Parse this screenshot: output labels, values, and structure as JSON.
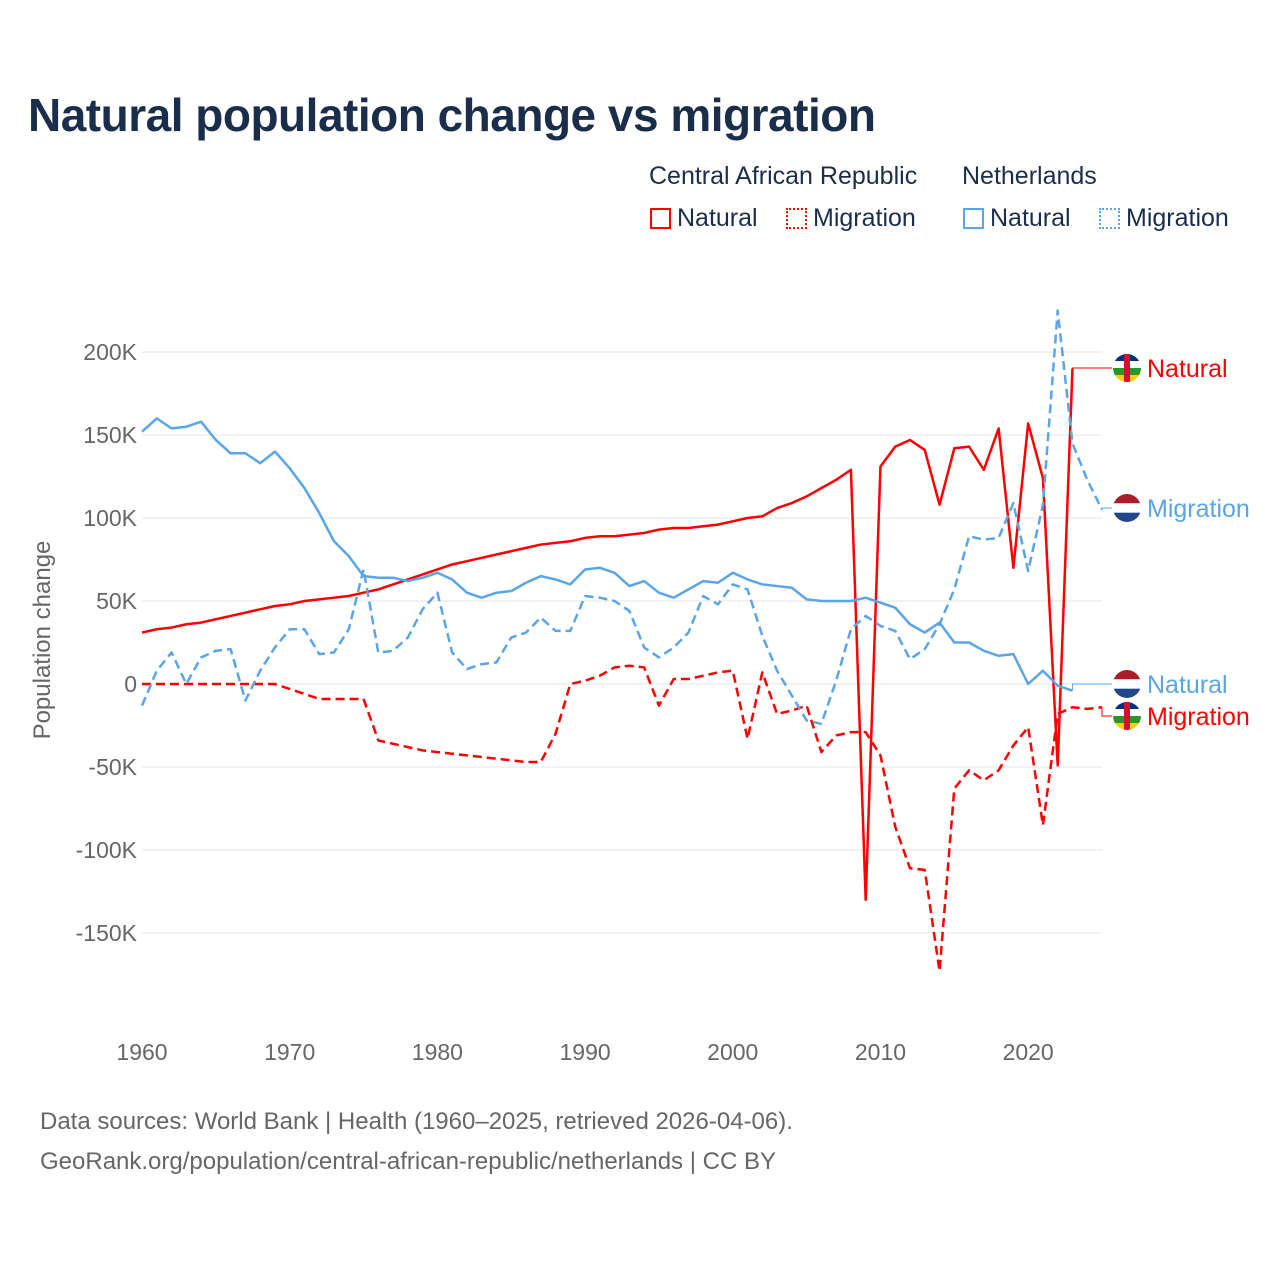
{
  "title": "Natural population change vs migration",
  "legend": {
    "groups": [
      {
        "name": "Central African Republic",
        "items": [
          "Natural",
          "Migration"
        ]
      },
      {
        "name": "Netherlands",
        "items": [
          "Natural",
          "Migration"
        ]
      }
    ]
  },
  "colors": {
    "car": "#ff0000",
    "nl": "#5aa5e8",
    "text": "#1a2e4c",
    "axis": "#666666",
    "grid": "#e6e6e6"
  },
  "footer": {
    "line1": "Data sources: World Bank | Health (1960–2025, retrieved 2026-04-06).",
    "line2": "GeoRank.org/population/central-african-republic/netherlands | CC BY"
  },
  "chart_data": {
    "type": "line",
    "title": "Natural population change vs migration",
    "xlabel": "",
    "ylabel": "Population change",
    "xlim": [
      1960,
      2025
    ],
    "ylim": [
      -200000,
      230000
    ],
    "x_ticks": [
      1960,
      1970,
      1980,
      1990,
      2000,
      2010,
      2020
    ],
    "x_tick_labels": [
      "1960",
      "1970",
      "1980",
      "1990",
      "2000",
      "2010",
      "2020"
    ],
    "y_ticks": [
      200000,
      150000,
      100000,
      50000,
      0,
      -50000,
      -100000,
      -150000
    ],
    "y_tick_labels": [
      "200K",
      "150K",
      "100K",
      "50K",
      "0",
      "-50K",
      "-100K",
      "-150K"
    ],
    "grid": true,
    "legend_position": "top-right",
    "series": [
      {
        "name": "Central African Republic Natural",
        "end_label": "Natural",
        "country": "car",
        "dashed": false,
        "start_year": 1960,
        "values": [
          31000,
          33000,
          34000,
          36000,
          37000,
          39000,
          41000,
          43000,
          45000,
          47000,
          48000,
          50000,
          51000,
          52000,
          53000,
          55000,
          57000,
          60000,
          63000,
          66000,
          69000,
          72000,
          74000,
          76000,
          78000,
          80000,
          82000,
          84000,
          85000,
          86000,
          88000,
          89000,
          89000,
          90000,
          91000,
          93000,
          94000,
          94000,
          95000,
          96000,
          98000,
          100000,
          101000,
          106000,
          109000,
          113000,
          118000,
          123000,
          129000,
          -130000,
          131000,
          143000,
          147000,
          141000,
          108000,
          142000,
          143000,
          129000,
          154000,
          70000,
          157000,
          124000,
          -49000,
          190000
        ]
      },
      {
        "name": "Central African Republic Migration",
        "end_label": "Migration",
        "country": "car",
        "dashed": true,
        "start_year": 1960,
        "values": [
          0,
          0,
          0,
          0,
          0,
          0,
          0,
          0,
          0,
          0,
          -3000,
          -6000,
          -9000,
          -9000,
          -9000,
          -9000,
          -34000,
          -36000,
          -38000,
          -40000,
          -41000,
          -42000,
          -43000,
          -44000,
          -45000,
          -46000,
          -47000,
          -47000,
          -30000,
          0,
          2000,
          5000,
          10000,
          11000,
          10000,
          -13000,
          3000,
          3000,
          5000,
          7000,
          8000,
          -33000,
          7000,
          -18000,
          -16000,
          -13000,
          -41000,
          -31000,
          -29000,
          -29000,
          -43000,
          -86000,
          -111000,
          -112000,
          -173000,
          -63000,
          -52000,
          -58000,
          -52000,
          -37000,
          -26000,
          -85000,
          -18000,
          -14000,
          -15000,
          -14000
        ]
      },
      {
        "name": "Netherlands Natural",
        "end_label": "Natural",
        "country": "nl",
        "dashed": false,
        "start_year": 1960,
        "values": [
          152000,
          160000,
          154000,
          155000,
          158000,
          147000,
          139000,
          139000,
          133000,
          140000,
          130000,
          118000,
          103000,
          86000,
          77000,
          65000,
          64000,
          64000,
          62000,
          64000,
          67000,
          63000,
          55000,
          52000,
          55000,
          56000,
          61000,
          65000,
          63000,
          60000,
          69000,
          70000,
          67000,
          59000,
          62000,
          55000,
          52000,
          57000,
          62000,
          61000,
          67000,
          63000,
          60000,
          59000,
          58000,
          51000,
          50000,
          50000,
          50000,
          52000,
          49000,
          46000,
          36000,
          31000,
          37000,
          25000,
          25000,
          20000,
          17000,
          18000,
          0,
          8000,
          -1000,
          -4000
        ]
      },
      {
        "name": "Netherlands Migration",
        "end_label": "Migration",
        "country": "nl",
        "dashed": true,
        "start_year": 1960,
        "values": [
          -13000,
          8000,
          19000,
          0,
          16000,
          20000,
          21000,
          -10000,
          8000,
          22000,
          33000,
          33000,
          18000,
          19000,
          33000,
          69000,
          19000,
          20000,
          28000,
          45000,
          55000,
          19000,
          9000,
          12000,
          13000,
          28000,
          31000,
          40000,
          32000,
          32000,
          53000,
          52000,
          50000,
          44000,
          22000,
          16000,
          22000,
          31000,
          53000,
          48000,
          60000,
          57000,
          29000,
          8000,
          -7000,
          -22000,
          -24000,
          2000,
          33000,
          41000,
          35000,
          32000,
          15000,
          21000,
          36000,
          57000,
          89000,
          87000,
          88000,
          109000,
          68000,
          108000,
          225000,
          145000,
          123000,
          105000
        ]
      }
    ]
  }
}
